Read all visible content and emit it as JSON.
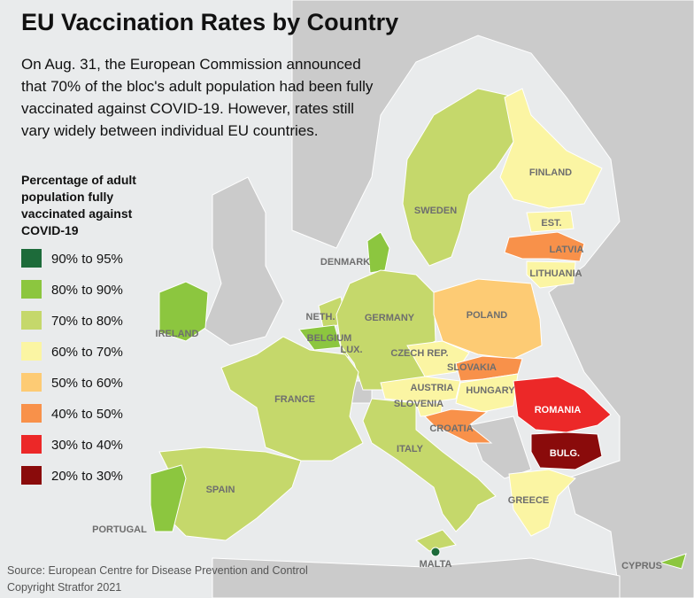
{
  "header": {
    "title": "EU Vaccination Rates by Country",
    "description": "On Aug. 31, the European Commission announced that 70% of the bloc's adult population had been fully vaccinated against COVID-19. However, rates still vary widely between individual EU countries."
  },
  "legend": {
    "title": "Percentage of adult population fully vaccinated against COVID-19",
    "items": [
      {
        "label": "90% to 95%",
        "color": "#1d6b3a"
      },
      {
        "label": "80% to 90%",
        "color": "#8cc63f"
      },
      {
        "label": "70% to 80%",
        "color": "#c5d86b"
      },
      {
        "label": "60% to 70%",
        "color": "#fbf5a3"
      },
      {
        "label": "50% to 60%",
        "color": "#fdcb74"
      },
      {
        "label": "40% to 50%",
        "color": "#f8914a"
      },
      {
        "label": "30% to 40%",
        "color": "#ec2828"
      },
      {
        "label": "20% to 30%",
        "color": "#8a0b0b"
      }
    ]
  },
  "countries": [
    {
      "label": "SWEDEN",
      "class": 2
    },
    {
      "label": "FINLAND",
      "class": 3
    },
    {
      "label": "EST.",
      "class": 3
    },
    {
      "label": "LATVIA",
      "class": 5
    },
    {
      "label": "LITHUANIA",
      "class": 3
    },
    {
      "label": "DENMARK",
      "class": 1
    },
    {
      "label": "IRELAND",
      "class": 1
    },
    {
      "label": "NETH.",
      "class": 2
    },
    {
      "label": "BELGIUM",
      "class": 1
    },
    {
      "label": "LUX.",
      "class": 2
    },
    {
      "label": "GERMANY",
      "class": 2
    },
    {
      "label": "POLAND",
      "class": 4
    },
    {
      "label": "CZECH REP.",
      "class": 3
    },
    {
      "label": "SLOVAKIA",
      "class": 5
    },
    {
      "label": "AUSTRIA",
      "class": 3
    },
    {
      "label": "HUNGARY",
      "class": 3
    },
    {
      "label": "SLOVENIA",
      "class": 3
    },
    {
      "label": "CROATIA",
      "class": 5
    },
    {
      "label": "ROMANIA",
      "class": 6
    },
    {
      "label": "BULG.",
      "class": 7
    },
    {
      "label": "FRANCE",
      "class": 2
    },
    {
      "label": "ITALY",
      "class": 2
    },
    {
      "label": "SPAIN",
      "class": 2
    },
    {
      "label": "PORTUGAL",
      "class": 1
    },
    {
      "label": "GREECE",
      "class": 3
    },
    {
      "label": "MALTA",
      "class": 0
    },
    {
      "label": "CYPRUS",
      "class": 1
    }
  ],
  "footer": {
    "source": "Source: European Centre for Disease Prevention and Control",
    "copyright": "Copyright Stratfor 2021"
  }
}
